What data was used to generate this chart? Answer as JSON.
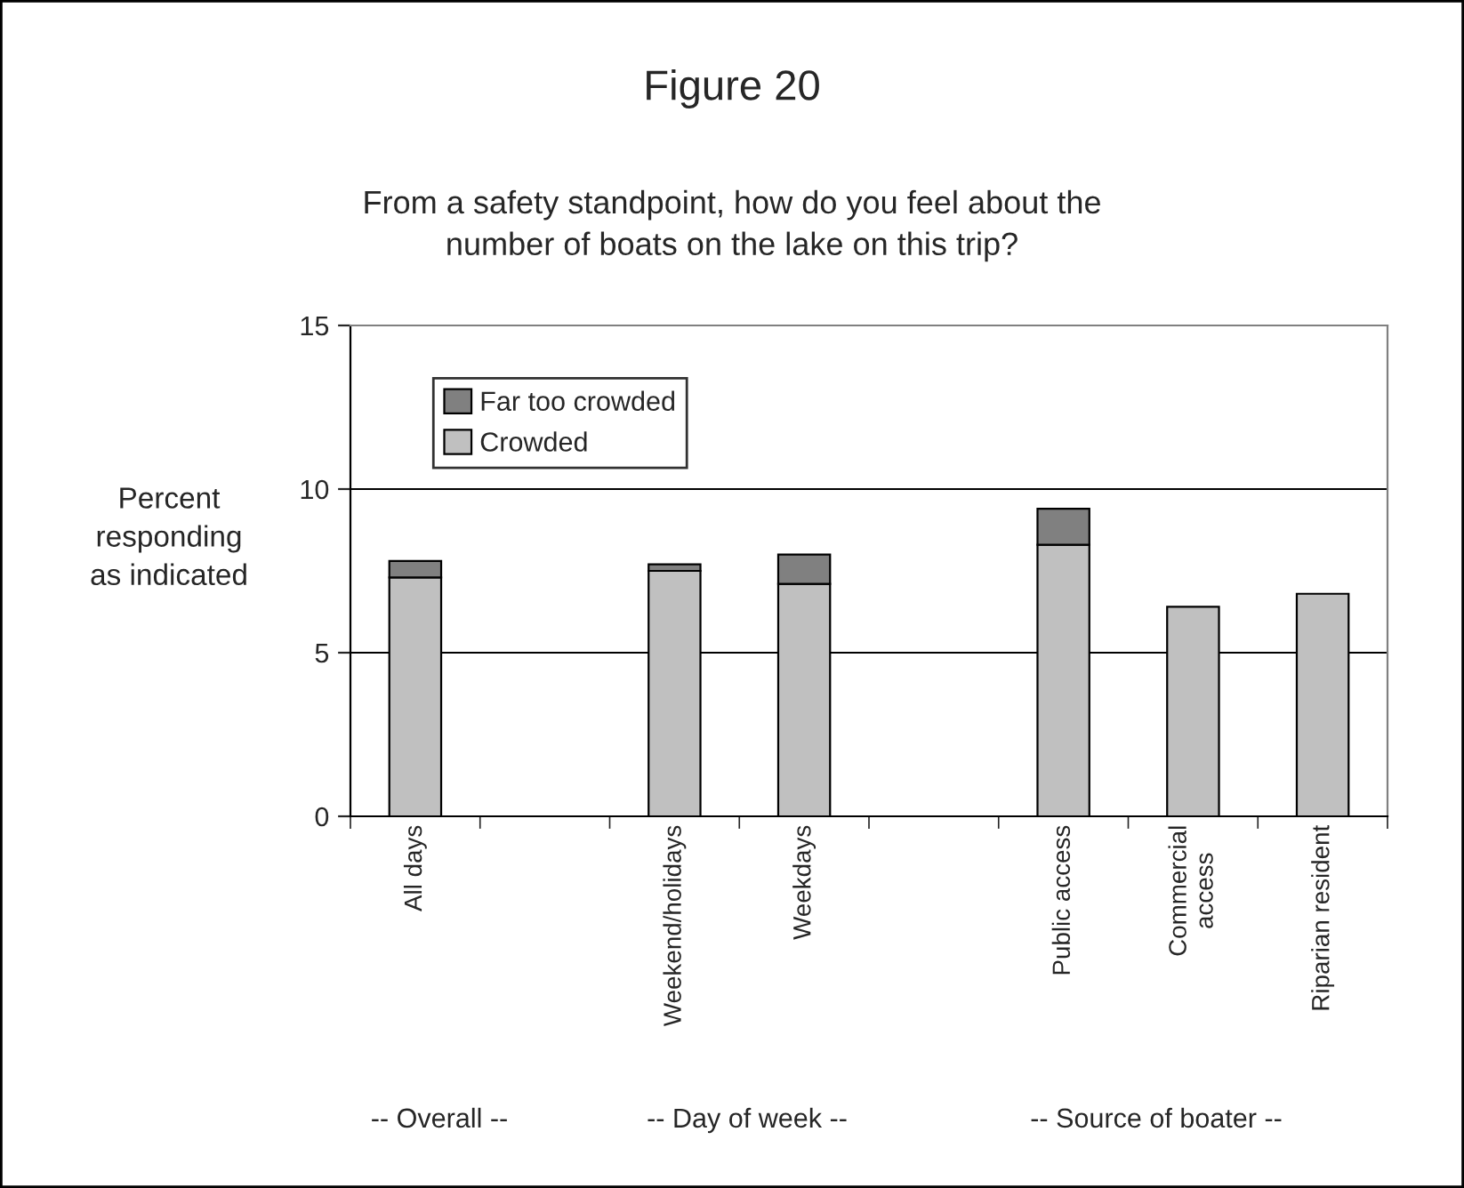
{
  "chart_data": {
    "type": "bar",
    "title": "Figure 20",
    "subtitle": "From a safety standpoint, how do you feel about the\nnumber of boats on the lake on this trip?",
    "ylabel": "Percent\nresponding\nas indicated",
    "categories": [
      "All days",
      null,
      "Weekend/holidays",
      "Weekdays",
      null,
      "Public access",
      "Commercial\naccess",
      "Riparian resident"
    ],
    "stacked": true,
    "series": [
      {
        "name": "Crowded",
        "color": "#c0c0c0",
        "values": [
          7.3,
          null,
          7.5,
          7.1,
          null,
          8.3,
          6.4,
          6.8
        ]
      },
      {
        "name": "Far too crowded",
        "color": "#808080",
        "values": [
          0.5,
          null,
          0.2,
          0.9,
          null,
          1.1,
          null,
          null
        ]
      }
    ],
    "ylim": [
      0,
      15
    ],
    "yticks": [
      0,
      5,
      10,
      15
    ],
    "grid": "y",
    "legend": "top left",
    "annotations": [
      "-- Overall --",
      "-- Day of week --",
      "-- Source of boater --"
    ]
  }
}
